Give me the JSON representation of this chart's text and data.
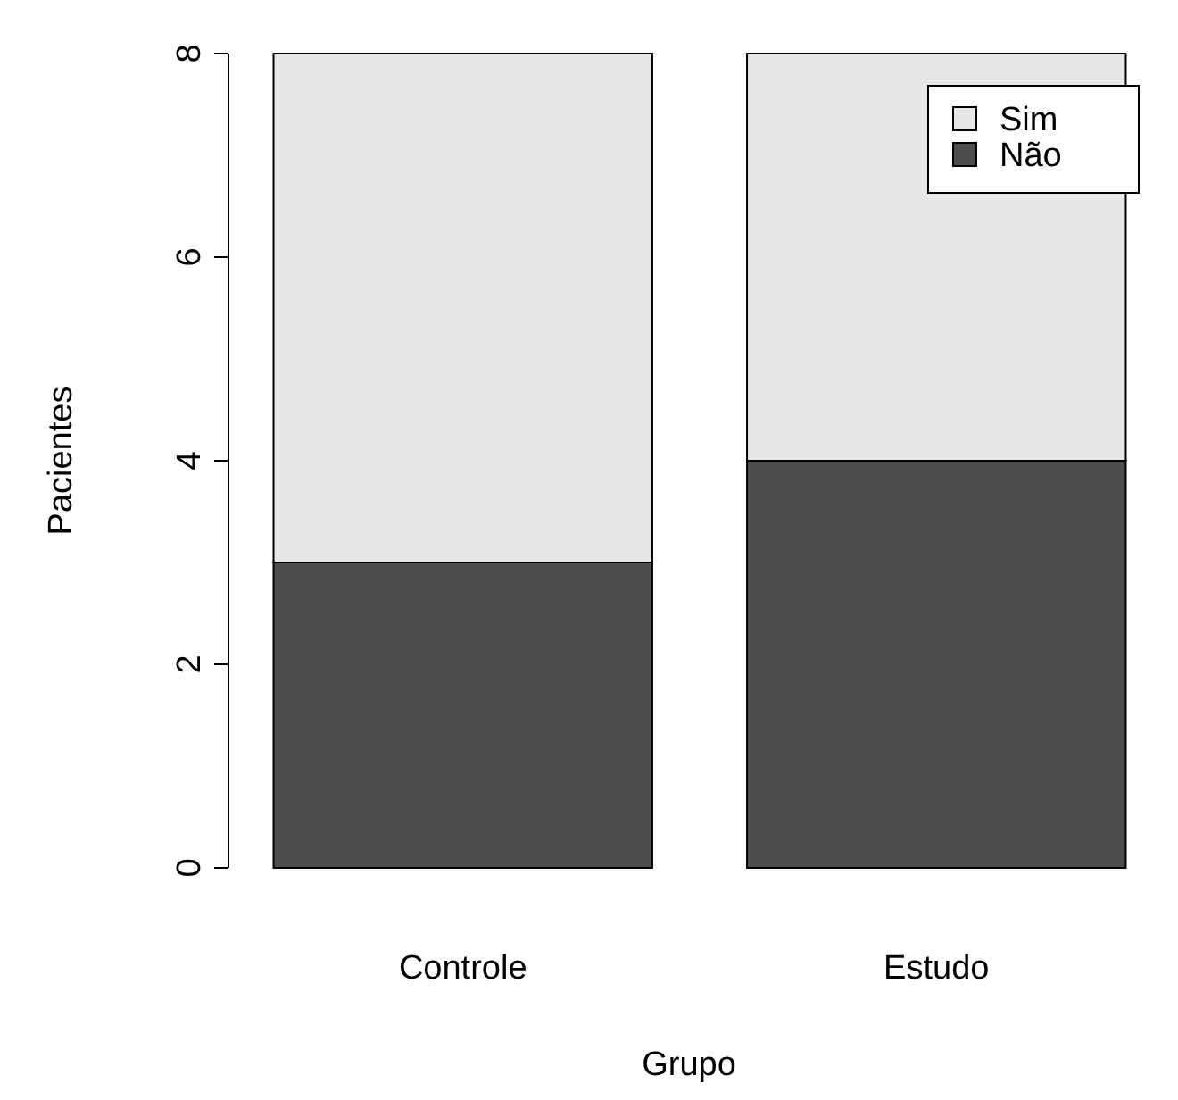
{
  "chart_data": {
    "type": "bar",
    "stacked": true,
    "xlabel": "Grupo",
    "ylabel": "Pacientes",
    "categories": [
      "Controle",
      "Estudo"
    ],
    "series": [
      {
        "name": "Não",
        "color": "#4d4d4d",
        "values": [
          3,
          4
        ]
      },
      {
        "name": "Sim",
        "color": "#e6e6e6",
        "values": [
          5,
          4
        ]
      }
    ],
    "ylim": [
      0,
      8
    ],
    "yticks": [
      0,
      2,
      4,
      6,
      8
    ],
    "grid": false,
    "legend": "top right"
  }
}
